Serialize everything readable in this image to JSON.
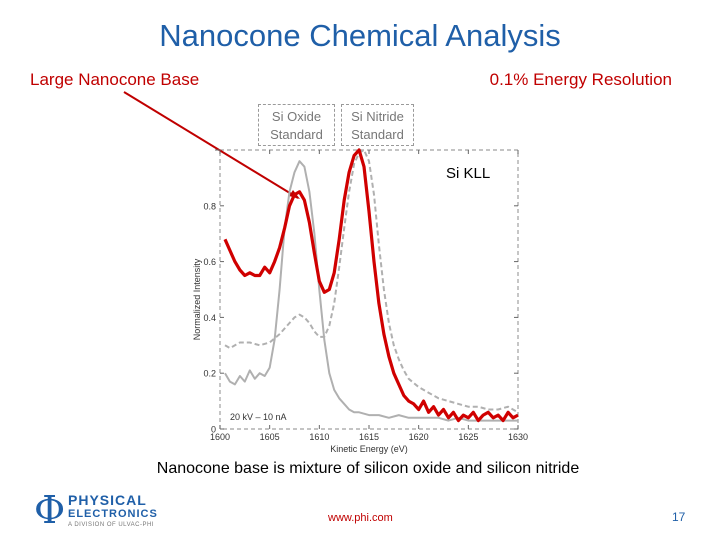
{
  "slide": {
    "title": "Nanocone Chemical Analysis",
    "label_left": "Large Nanocone Base",
    "label_right": "0.1% Energy Resolution",
    "std_oxide": [
      "Si Oxide",
      "Standard"
    ],
    "std_nitride": [
      "Si Nitride",
      "Standard"
    ],
    "caption": "Nanocone base is mixture of silicon oxide and silicon nitride",
    "footer_url": "www.phi.com",
    "page_number": "17",
    "logo": {
      "line1": "PHYSICAL",
      "line2": "ELECTRONICS",
      "line3": "A DIVISION OF ULVAC-PHI"
    }
  },
  "colors": {
    "title": "#1f5fa8",
    "accent": "#c00000",
    "oxide_std": "#b0b0b0",
    "nitride_std": "#b0b0b0",
    "sample": "#d00000"
  },
  "chart_data": {
    "type": "line",
    "title": "",
    "xlabel": "Kinetic Energy (eV)",
    "ylabel": "Normalized Intensity",
    "xlim": [
      1600,
      1630
    ],
    "ylim": [
      0,
      1
    ],
    "xticks": [
      1600,
      1605,
      1610,
      1615,
      1620,
      1625,
      1630
    ],
    "yticks": [
      0,
      0.2,
      0.4,
      0.6,
      0.8
    ],
    "yticklabels": [
      "0",
      "0.2",
      "0.4",
      "0.6",
      "0.8"
    ],
    "xticklabels": [
      "1600",
      "1605",
      "1610",
      "1615",
      "1620",
      "1625",
      "1630"
    ],
    "annotation_peak": "Si KLL",
    "annotation_conditions": "20 kV – 10 nA",
    "series": [
      {
        "key": "oxide",
        "style": "solid",
        "x": [
          1600.5,
          1601,
          1601.5,
          1602,
          1602.5,
          1603,
          1603.5,
          1604,
          1604.5,
          1605,
          1605.5,
          1606,
          1606.5,
          1607,
          1607.5,
          1608,
          1608.5,
          1609,
          1609.5,
          1610,
          1610.5,
          1611,
          1611.5,
          1612,
          1612.5,
          1613,
          1613.5,
          1614,
          1615,
          1616,
          1617,
          1618,
          1619,
          1620,
          1621,
          1622,
          1623,
          1624,
          1625,
          1626,
          1627,
          1628,
          1629,
          1630
        ],
        "y": [
          0.2,
          0.17,
          0.16,
          0.19,
          0.17,
          0.21,
          0.18,
          0.2,
          0.19,
          0.22,
          0.32,
          0.5,
          0.72,
          0.85,
          0.92,
          0.96,
          0.94,
          0.85,
          0.7,
          0.5,
          0.32,
          0.2,
          0.14,
          0.11,
          0.09,
          0.07,
          0.06,
          0.06,
          0.05,
          0.05,
          0.04,
          0.05,
          0.04,
          0.04,
          0.04,
          0.04,
          0.03,
          0.04,
          0.03,
          0.03,
          0.03,
          0.03,
          0.03,
          0.03
        ]
      },
      {
        "key": "nitride",
        "style": "dashed",
        "x": [
          1600.5,
          1601,
          1602,
          1603,
          1604,
          1605,
          1606,
          1607,
          1607.5,
          1608,
          1608.5,
          1609,
          1609.5,
          1610,
          1610.5,
          1611,
          1611.5,
          1612,
          1612.5,
          1613,
          1613.5,
          1614,
          1614.5,
          1615,
          1615.5,
          1616,
          1616.5,
          1617,
          1617.5,
          1618,
          1618.5,
          1619,
          1620,
          1621,
          1622,
          1623,
          1624,
          1625,
          1626,
          1627,
          1628,
          1629,
          1630
        ],
        "y": [
          0.3,
          0.29,
          0.31,
          0.31,
          0.3,
          0.31,
          0.34,
          0.38,
          0.4,
          0.41,
          0.4,
          0.38,
          0.35,
          0.33,
          0.33,
          0.37,
          0.45,
          0.58,
          0.72,
          0.85,
          0.95,
          0.99,
          1.0,
          0.96,
          0.84,
          0.66,
          0.5,
          0.38,
          0.3,
          0.25,
          0.21,
          0.18,
          0.15,
          0.13,
          0.11,
          0.1,
          0.09,
          0.08,
          0.08,
          0.07,
          0.07,
          0.08,
          0.06
        ]
      },
      {
        "key": "sample",
        "style": "solid",
        "x": [
          1600.5,
          1601,
          1601.5,
          1602,
          1602.5,
          1603,
          1603.5,
          1604,
          1604.5,
          1605,
          1605.5,
          1606,
          1606.5,
          1607,
          1607.5,
          1608,
          1608.5,
          1609,
          1609.5,
          1610,
          1610.5,
          1611,
          1611.5,
          1612,
          1612.5,
          1613,
          1613.5,
          1614,
          1614.5,
          1615,
          1615.5,
          1616,
          1616.5,
          1617,
          1617.5,
          1618,
          1618.5,
          1619,
          1619.5,
          1620,
          1620.5,
          1621,
          1621.5,
          1622,
          1622.5,
          1623,
          1623.5,
          1624,
          1624.5,
          1625,
          1625.5,
          1626,
          1626.5,
          1627,
          1627.5,
          1628,
          1628.5,
          1629,
          1629.5,
          1630
        ],
        "y": [
          0.68,
          0.64,
          0.6,
          0.57,
          0.55,
          0.56,
          0.55,
          0.55,
          0.58,
          0.56,
          0.6,
          0.65,
          0.72,
          0.8,
          0.84,
          0.85,
          0.82,
          0.74,
          0.63,
          0.53,
          0.49,
          0.5,
          0.56,
          0.68,
          0.82,
          0.92,
          0.98,
          1.0,
          0.94,
          0.78,
          0.6,
          0.45,
          0.34,
          0.26,
          0.2,
          0.16,
          0.12,
          0.1,
          0.09,
          0.07,
          0.1,
          0.06,
          0.08,
          0.05,
          0.07,
          0.04,
          0.06,
          0.03,
          0.05,
          0.04,
          0.06,
          0.03,
          0.05,
          0.06,
          0.04,
          0.05,
          0.03,
          0.06,
          0.04,
          0.05
        ]
      }
    ]
  }
}
